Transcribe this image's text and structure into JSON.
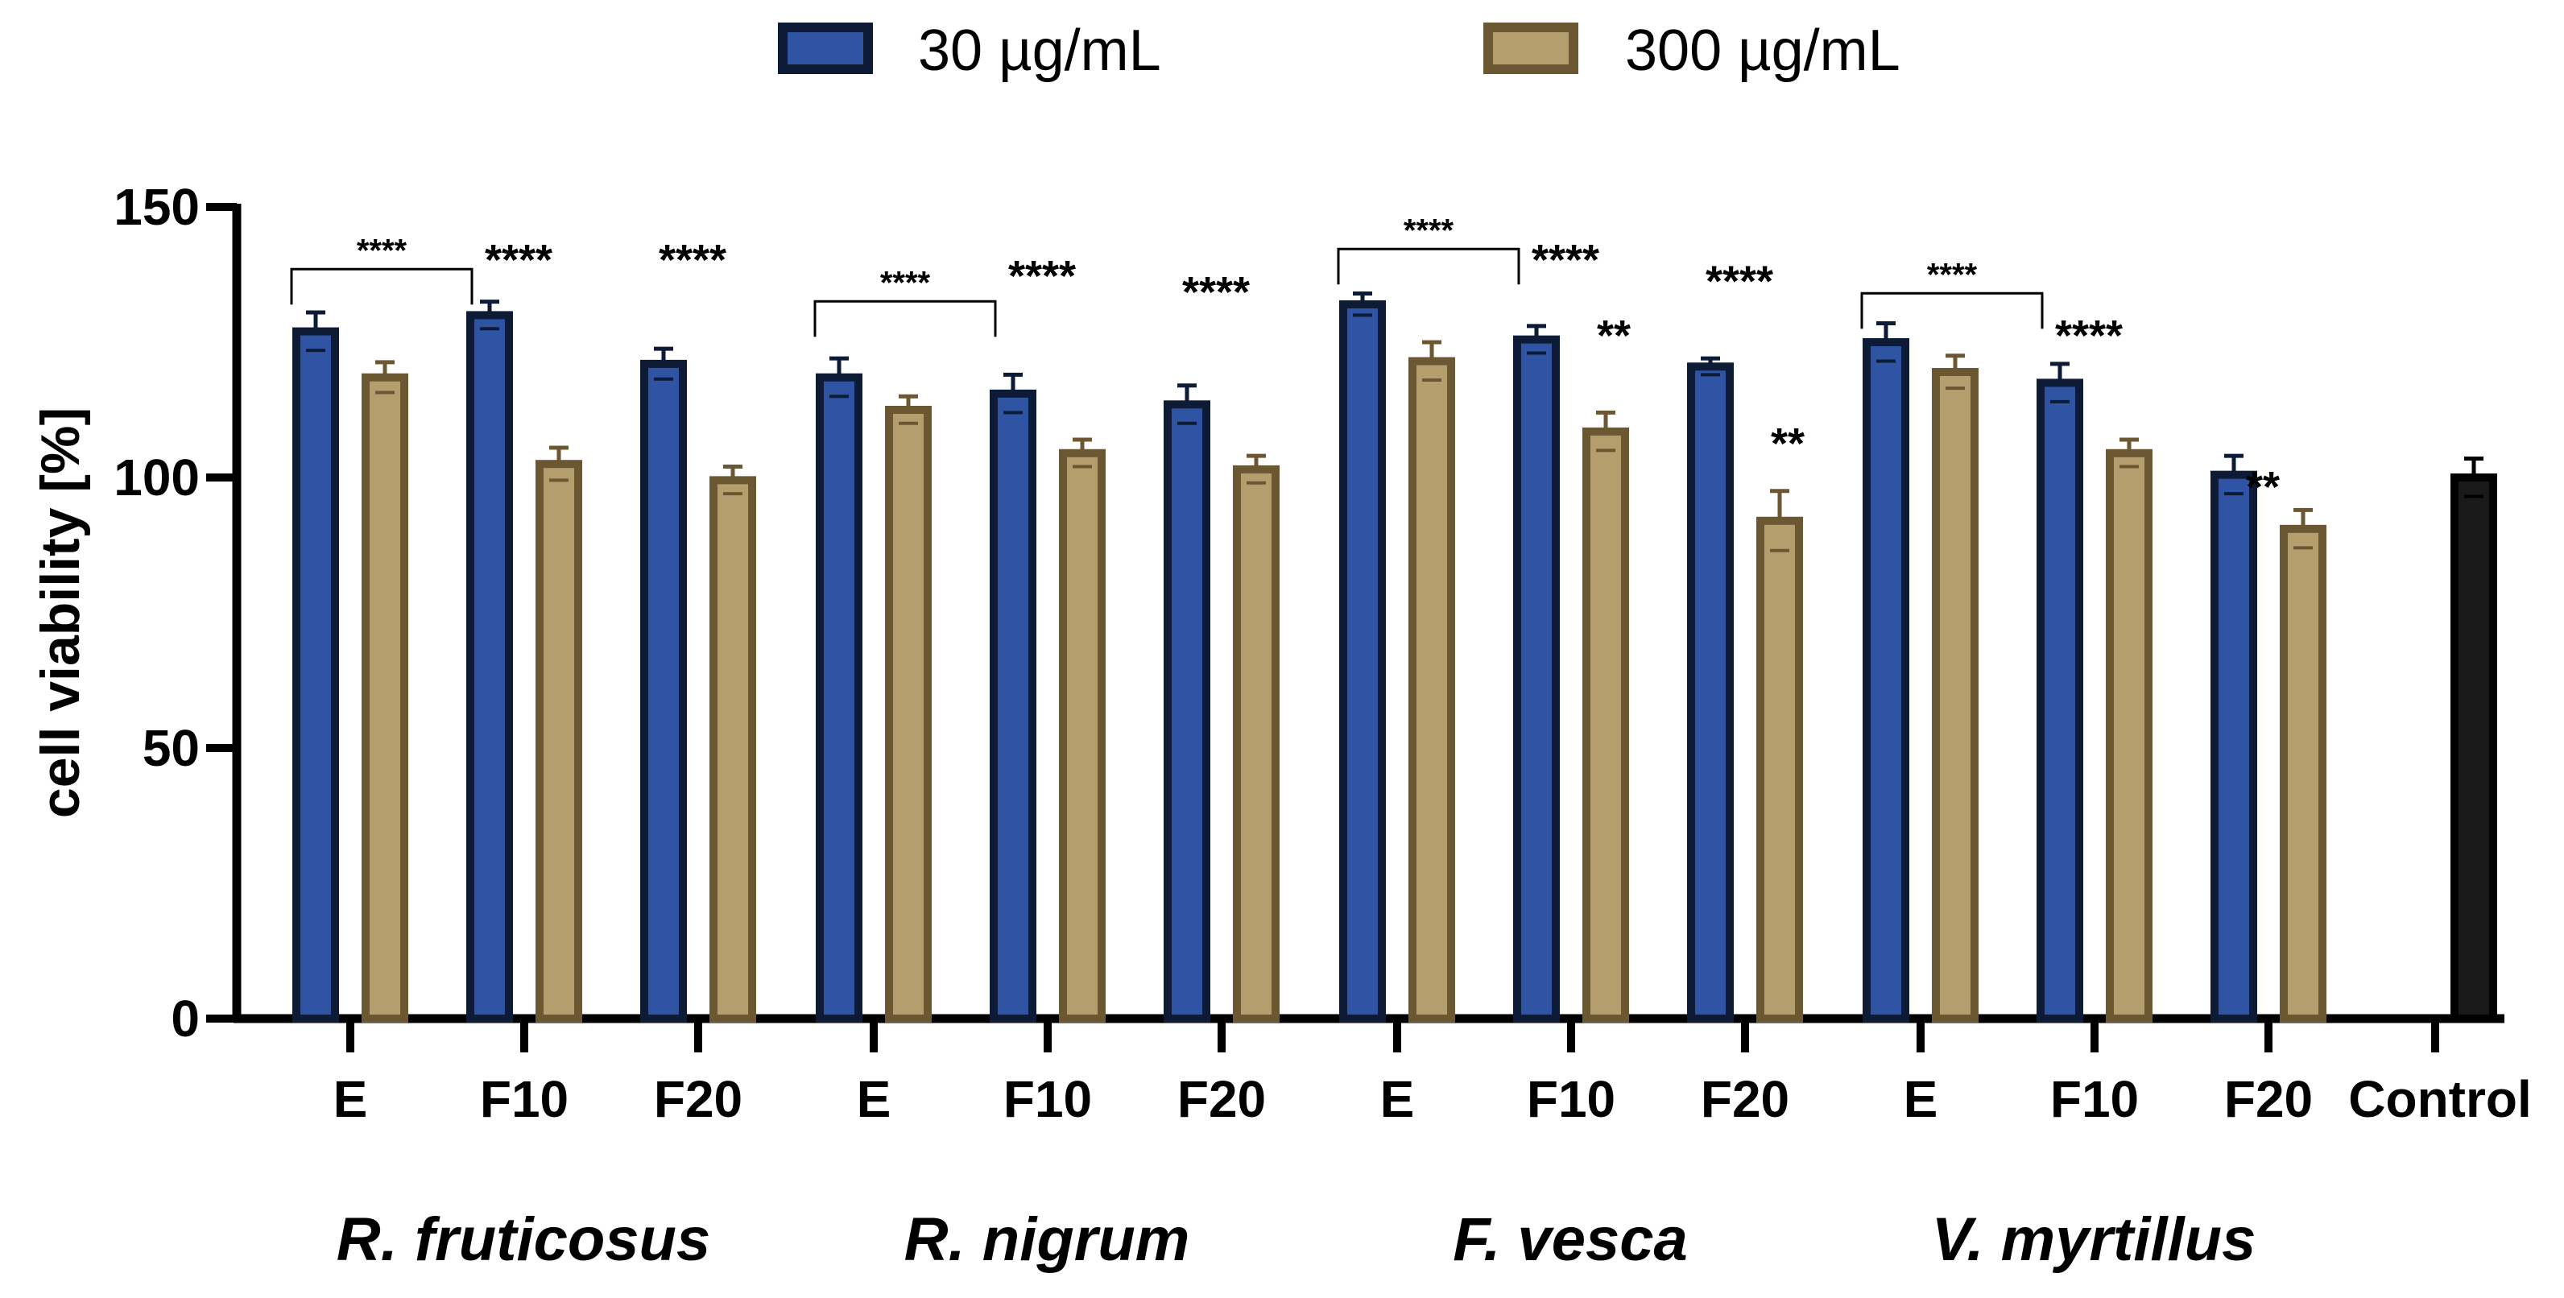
{
  "chart_data": {
    "type": "bar",
    "ylabel": "cell viability [%]",
    "ylim": [
      0,
      150
    ],
    "yticks": [
      0,
      50,
      100,
      150
    ],
    "legend": {
      "placement": "top-center"
    },
    "series": [
      {
        "name": "30 µg/mL",
        "fill": "#2f54a3",
        "edge": "#0d1b36"
      },
      {
        "name": "300 µg/mL",
        "fill": "#b59e6e",
        "edge": "#6b5833"
      }
    ],
    "control_colors": {
      "fill": "#1a1a1a",
      "edge": "#000000"
    },
    "groups": [
      {
        "species": "R. fruticosus",
        "bars": [
          {
            "label": "E",
            "v30": 127,
            "e30": 3.5,
            "v300": 118.5,
            "e300": 2.8,
            "sig": "****",
            "sig_type": "bracket"
          },
          {
            "label": "F10",
            "v30": 130,
            "e30": 2.5,
            "v300": 102.5,
            "e300": 3.0,
            "sig": "****",
            "sig_type": "top",
            "sig_y": 142
          },
          {
            "label": "F20",
            "v30": 121,
            "e30": 2.8,
            "v300": 99.5,
            "e300": 2.5,
            "sig": "****",
            "sig_type": "top",
            "sig_y": 142
          }
        ]
      },
      {
        "species": "R. nigrum",
        "bars": [
          {
            "label": "E",
            "v30": 118.5,
            "e30": 3.5,
            "v300": 112.5,
            "e300": 2.5,
            "sig": "****",
            "sig_type": "bracket"
          },
          {
            "label": "F10",
            "v30": 115.5,
            "e30": 3.5,
            "v300": 104.5,
            "e300": 2.5,
            "sig": "****",
            "sig_type": "top",
            "sig_y": 139
          },
          {
            "label": "F20",
            "v30": 113.5,
            "e30": 3.5,
            "v300": 101.5,
            "e300": 2.5,
            "sig": "****",
            "sig_type": "top",
            "sig_y": 136
          }
        ]
      },
      {
        "species": "F. vesca",
        "bars": [
          {
            "label": "E",
            "v30": 132,
            "e30": 2.0,
            "v300": 121.5,
            "e300": 3.5,
            "sig": "****",
            "sig_type": "bracket"
          },
          {
            "label": "F10",
            "v30": 125.5,
            "e30": 2.5,
            "v300": 108.5,
            "e300": 3.5,
            "sig": "****",
            "sig_type": "top",
            "sig_y": 142,
            "sig2": "**",
            "sig2_y": 128
          },
          {
            "label": "F20",
            "v30": 120.5,
            "e30": 1.5,
            "v300": 92,
            "e300": 5.5,
            "sig": "****",
            "sig_type": "top",
            "sig_y": 138,
            "sig2": "**",
            "sig2_y": 108
          }
        ]
      },
      {
        "species": "V. myrtillus",
        "bars": [
          {
            "label": "E",
            "v30": 125,
            "e30": 3.5,
            "v300": 119.5,
            "e300": 3.0,
            "sig": "****",
            "sig_type": "bracket"
          },
          {
            "label": "F10",
            "v30": 117.5,
            "e30": 3.5,
            "v300": 104.5,
            "e300": 2.5,
            "sig": "****",
            "sig_type": "top",
            "sig_y": 128
          },
          {
            "label": "F20",
            "v30": 100.5,
            "e30": 3.5,
            "v300": 90.5,
            "e300": 3.5,
            "sig": "**",
            "sig_type": "top",
            "sig_y": 100
          }
        ]
      }
    ],
    "control": {
      "label": "Control",
      "value": 100,
      "error": 3.5
    }
  }
}
